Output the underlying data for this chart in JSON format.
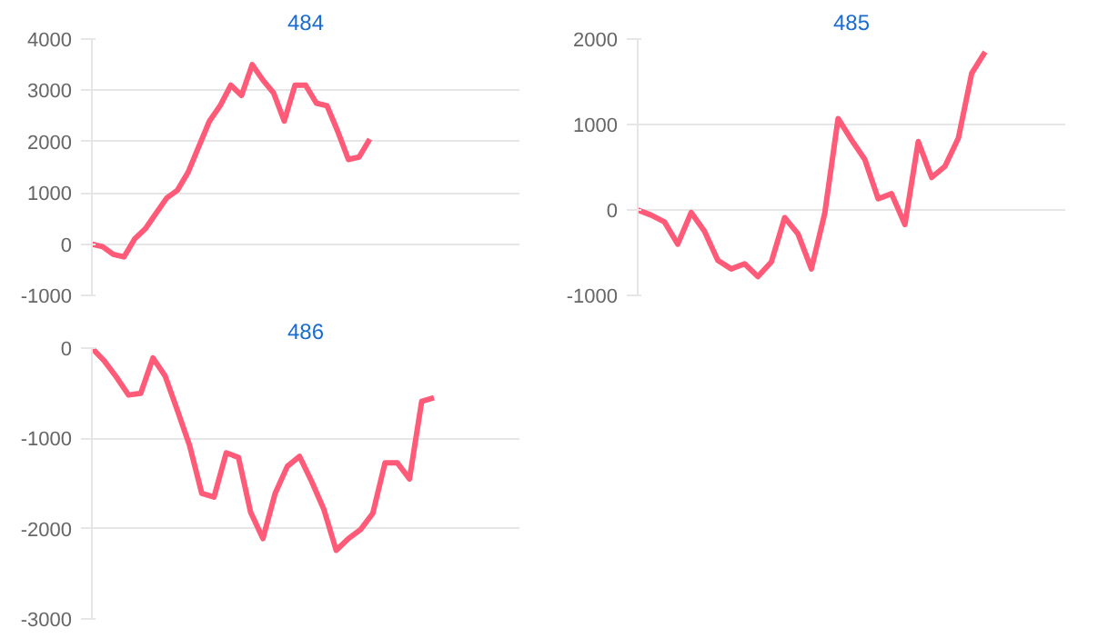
{
  "chart_data": [
    {
      "type": "line",
      "title": "484",
      "categories": [
        null,
        null,
        null,
        null,
        null,
        null,
        null,
        null,
        null,
        null,
        null,
        null,
        null,
        null,
        null,
        null,
        null,
        null,
        null,
        null,
        null,
        null,
        null,
        null,
        null,
        null,
        null,
        null,
        null,
        null,
        null,
        null,
        null,
        null,
        null,
        null,
        null,
        null,
        null,
        null,
        null
      ],
      "series": [
        {
          "color": "#ff5a78",
          "values": [
            0,
            -50,
            -200,
            -250,
            100,
            300,
            600,
            900,
            1050,
            1400,
            1900,
            2400,
            2700,
            3100,
            2900,
            3500,
            3200,
            2950,
            2400,
            3100,
            3100,
            2750,
            2700,
            2200,
            1650,
            1700,
            2050,
            null,
            null,
            null,
            null,
            null,
            null,
            null,
            null,
            null,
            null,
            null,
            null,
            null,
            null
          ]
        }
      ],
      "ylim": [
        -1000,
        4000
      ],
      "yticks": [
        -1000,
        0,
        1000,
        2000,
        3000,
        4000
      ],
      "grid": "y",
      "tick_labels": "y"
    },
    {
      "type": "line",
      "title": "485",
      "categories": [
        null,
        null,
        null,
        null,
        null,
        null,
        null,
        null,
        null,
        null,
        null,
        null,
        null,
        null,
        null,
        null,
        null,
        null,
        null,
        null,
        null,
        null,
        null,
        null,
        null,
        null,
        null,
        null,
        null,
        null,
        null,
        null,
        null
      ],
      "series": [
        {
          "color": "#ff5a78",
          "values": [
            0,
            -60,
            -140,
            -400,
            -30,
            -250,
            -590,
            -690,
            -630,
            -780,
            -610,
            -90,
            -280,
            -690,
            -40,
            1070,
            820,
            590,
            130,
            190,
            -170,
            800,
            380,
            510,
            840,
            1600,
            1850,
            null,
            null,
            null,
            null,
            null,
            null
          ]
        }
      ],
      "ylim": [
        -1000,
        2000
      ],
      "yticks": [
        -1000,
        0,
        1000,
        2000
      ],
      "grid": "y",
      "tick_labels": "y"
    },
    {
      "type": "line",
      "title": "486",
      "categories": [
        null,
        null,
        null,
        null,
        null,
        null,
        null,
        null,
        null,
        null,
        null,
        null,
        null,
        null,
        null,
        null,
        null,
        null,
        null,
        null,
        null,
        null,
        null,
        null,
        null,
        null,
        null,
        null,
        null,
        null,
        null,
        null,
        null,
        null,
        null,
        null
      ],
      "series": [
        {
          "color": "#ff5a78",
          "values": [
            0,
            -140,
            -320,
            -520,
            -500,
            -110,
            -310,
            -690,
            -1080,
            -1610,
            -1650,
            -1160,
            -1210,
            -1820,
            -2110,
            -1610,
            -1310,
            -1200,
            -1480,
            -1790,
            -2240,
            -2110,
            -2010,
            -1830,
            -1270,
            -1270,
            -1450,
            -590,
            -550,
            null,
            null,
            null,
            null,
            null,
            null,
            null
          ]
        }
      ],
      "ylim": [
        -3000,
        0
      ],
      "yticks": [
        -3000,
        -2000,
        -1000,
        0
      ],
      "grid": "y",
      "tick_labels": "y"
    }
  ]
}
